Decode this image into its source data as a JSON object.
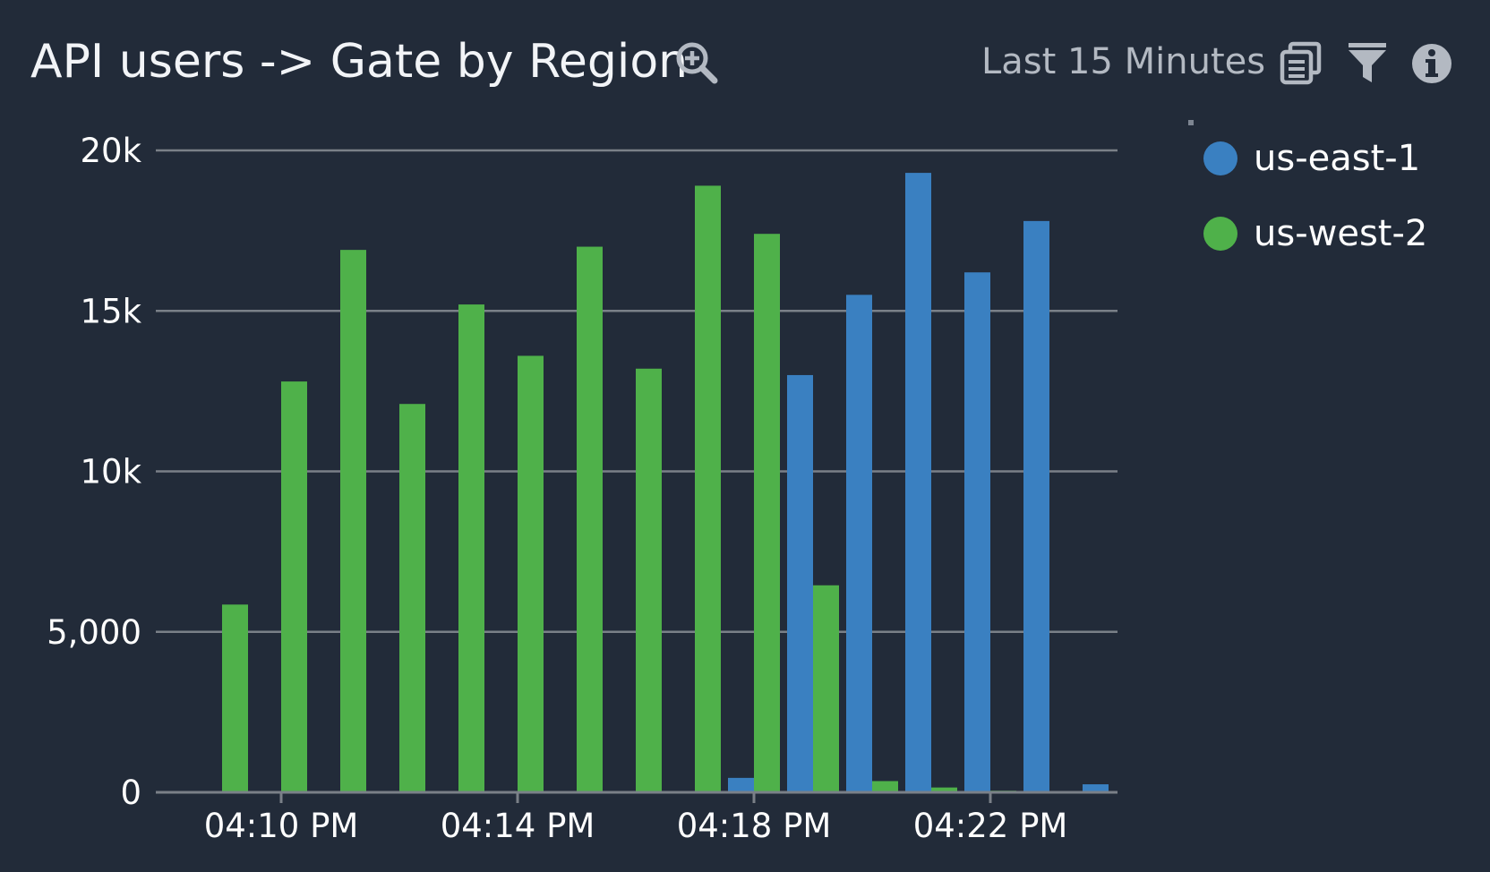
{
  "header": {
    "title": "API users -> Gate by Region",
    "time_range": "Last 15 Minutes",
    "icons": [
      "zoom-in-icon",
      "copy-icon",
      "filter-icon",
      "info-icon"
    ]
  },
  "colors": {
    "background": "#222b39",
    "gridline": "#7a8088",
    "us-east-1": "#3a80c1",
    "us-west-2": "#4fb14a"
  },
  "chart_data": {
    "type": "bar",
    "title": "API users -> Gate by Region",
    "categories": [
      "04:09 PM",
      "04:10 PM",
      "04:11 PM",
      "04:12 PM",
      "04:13 PM",
      "04:14 PM",
      "04:15 PM",
      "04:16 PM",
      "04:17 PM",
      "04:18 PM",
      "04:19 PM",
      "04:20 PM",
      "04:21 PM",
      "04:22 PM",
      "04:23 PM",
      "04:24 PM"
    ],
    "x_tick_labels": [
      "04:10 PM",
      "04:14 PM",
      "04:18 PM",
      "04:22 PM"
    ],
    "y_tick_labels": [
      "0",
      "5,000",
      "10k",
      "15k",
      "20k"
    ],
    "ylim": [
      0,
      20000
    ],
    "grid": true,
    "legend_position": "right",
    "series": [
      {
        "name": "us-east-1",
        "color": "#3a80c1",
        "values": [
          0,
          0,
          0,
          0,
          0,
          0,
          0,
          0,
          0,
          450,
          13000,
          15500,
          19300,
          16200,
          17800,
          250
        ]
      },
      {
        "name": "us-west-2",
        "color": "#4fb14a",
        "values": [
          5850,
          12800,
          16900,
          12100,
          15200,
          13600,
          17000,
          13200,
          18900,
          17400,
          6450,
          350,
          150,
          50,
          0,
          0
        ]
      }
    ]
  }
}
